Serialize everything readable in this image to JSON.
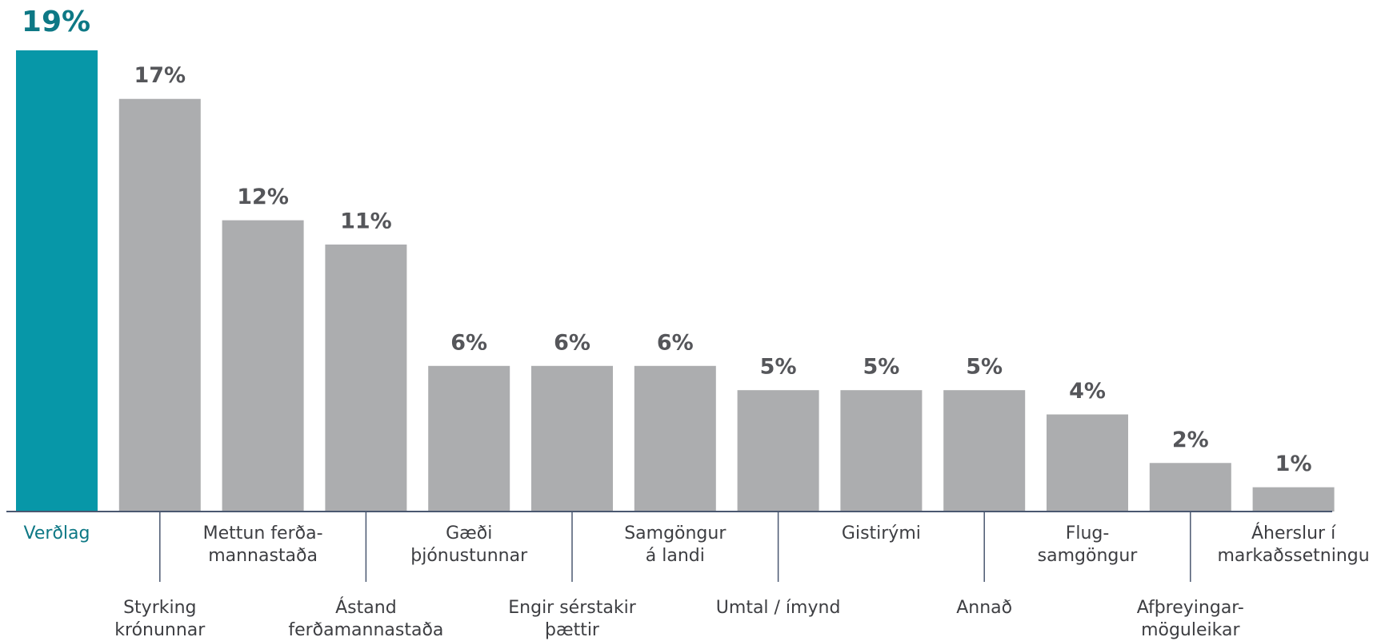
{
  "chart_data": {
    "type": "bar",
    "categories": [
      [
        "Verðlag"
      ],
      [
        "Styrking",
        "krónunnar"
      ],
      [
        "Mettun ferða-",
        "mannastaða"
      ],
      [
        "Ástand",
        "ferðamannastaða"
      ],
      [
        "Gæði",
        "þjónustunnar"
      ],
      [
        "Engir sérstakir",
        "þættir"
      ],
      [
        "Samgöngur",
        "á landi"
      ],
      [
        "Umtal / ímynd"
      ],
      [
        "Gistirými"
      ],
      [
        "Annað"
      ],
      [
        "Flug-",
        "samgöngur"
      ],
      [
        "Afþreyingar-",
        "möguleikar"
      ],
      [
        "Áherslur í",
        "markaðssetningu"
      ]
    ],
    "values": [
      19,
      17,
      12,
      11,
      6,
      6,
      6,
      5,
      5,
      5,
      4,
      2,
      1
    ],
    "value_labels": [
      "19%",
      "17%",
      "12%",
      "11%",
      "6%",
      "6%",
      "6%",
      "5%",
      "5%",
      "5%",
      "4%",
      "2%",
      "1%"
    ],
    "colors": [
      "#0797a8",
      "#acadaf",
      "#acadaf",
      "#acadaf",
      "#acadaf",
      "#acadaf",
      "#acadaf",
      "#acadaf",
      "#acadaf",
      "#acadaf",
      "#acadaf",
      "#acadaf",
      "#acadaf"
    ]
  }
}
